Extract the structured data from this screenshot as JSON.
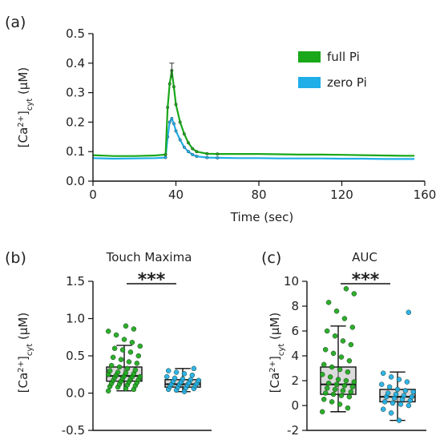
{
  "colors": {
    "full": "#1aa81a",
    "zero": "#20aee8",
    "box_full": "#bdbdbd",
    "box_zero": "#bdbdbd"
  },
  "chart_data": [
    {
      "panel": "(a)",
      "type": "line",
      "title": "",
      "xlabel": "Time (sec)",
      "ylabel_main": "[Ca",
      "ylabel_sup": "2+",
      "ylabel_close": "]",
      "ylabel_sub": "cyt",
      "ylabel_unit": " (µM)",
      "xlim": [
        0,
        160
      ],
      "ylim": [
        0,
        0.5
      ],
      "xticks": [
        "0",
        "40",
        "80",
        "120",
        "160"
      ],
      "xtick_values": [
        0,
        40,
        80,
        120,
        160
      ],
      "yticks": [
        "0.0",
        "0.1",
        "0.2",
        "0.3",
        "0.4",
        "0.5"
      ],
      "ytick_values": [
        0,
        0.1,
        0.2,
        0.3,
        0.4,
        0.5
      ],
      "legend_position": "top-right",
      "series": [
        {
          "name": "full Pi",
          "key": "full",
          "x": [
            0,
            10,
            20,
            30,
            35,
            36,
            37,
            38,
            39,
            40,
            42,
            44,
            46,
            48,
            50,
            55,
            60,
            70,
            80,
            90,
            100,
            110,
            120,
            130,
            140,
            150,
            155
          ],
          "y": [
            0.088,
            0.085,
            0.085,
            0.087,
            0.09,
            0.25,
            0.33,
            0.375,
            0.32,
            0.26,
            0.2,
            0.16,
            0.13,
            0.11,
            0.1,
            0.093,
            0.092,
            0.092,
            0.092,
            0.091,
            0.09,
            0.09,
            0.089,
            0.088,
            0.087,
            0.086,
            0.086
          ]
        },
        {
          "name": "zero Pi",
          "key": "zero",
          "x": [
            0,
            10,
            20,
            30,
            35,
            36,
            37,
            38,
            39,
            40,
            42,
            44,
            46,
            48,
            50,
            55,
            60,
            70,
            80,
            90,
            100,
            110,
            120,
            130,
            140,
            150,
            155
          ],
          "y": [
            0.078,
            0.076,
            0.077,
            0.078,
            0.08,
            0.15,
            0.2,
            0.212,
            0.195,
            0.17,
            0.14,
            0.115,
            0.1,
            0.09,
            0.084,
            0.08,
            0.079,
            0.078,
            0.078,
            0.077,
            0.077,
            0.077,
            0.076,
            0.076,
            0.075,
            0.075,
            0.075
          ]
        }
      ],
      "annotations": [
        {
          "type": "error_bar",
          "series": "full Pi",
          "x": 38,
          "y_low": 0.35,
          "y_high": 0.4
        }
      ]
    },
    {
      "panel": "(b)",
      "type": "box",
      "title": "Touch Maxima",
      "ylabel_main": "[Ca",
      "ylabel_sup": "2+",
      "ylabel_close": "]",
      "ylabel_sub": "cyt",
      "ylabel_unit": " (µM)",
      "ylim": [
        -0.5,
        1.5
      ],
      "yticks": [
        "-0.5",
        "0.0",
        "0.5",
        "1.0",
        "1.5"
      ],
      "ytick_values": [
        -0.5,
        0,
        0.5,
        1.0,
        1.5
      ],
      "significance": "***",
      "groups": [
        {
          "key": "full",
          "whisker_low": 0.03,
          "q1": 0.16,
          "median": 0.23,
          "q3": 0.35,
          "whisker_high": 0.64,
          "points": [
            0.03,
            0.05,
            0.06,
            0.08,
            0.09,
            0.1,
            0.11,
            0.12,
            0.13,
            0.14,
            0.15,
            0.16,
            0.17,
            0.18,
            0.19,
            0.2,
            0.21,
            0.22,
            0.22,
            0.23,
            0.24,
            0.25,
            0.26,
            0.27,
            0.28,
            0.3,
            0.31,
            0.33,
            0.35,
            0.37,
            0.4,
            0.42,
            0.45,
            0.48,
            0.5,
            0.55,
            0.58,
            0.6,
            0.63,
            0.68,
            0.72,
            0.78,
            0.83,
            0.86,
            0.9
          ]
        },
        {
          "key": "zero",
          "whisker_low": 0.02,
          "q1": 0.08,
          "median": 0.12,
          "q3": 0.18,
          "whisker_high": 0.33,
          "points": [
            0.02,
            0.04,
            0.05,
            0.06,
            0.07,
            0.08,
            0.09,
            0.1,
            0.11,
            0.12,
            0.12,
            0.13,
            0.14,
            0.15,
            0.16,
            0.17,
            0.18,
            0.19,
            0.2,
            0.22,
            0.24,
            0.26,
            0.28,
            0.3,
            0.33
          ]
        }
      ]
    },
    {
      "panel": "(c)",
      "type": "box",
      "title": "AUC",
      "ylabel_main": "[Ca",
      "ylabel_sup": "2+",
      "ylabel_close": "]",
      "ylabel_sub": "cyt",
      "ylabel_unit": " (µM)",
      "ylim": [
        -2,
        10
      ],
      "yticks": [
        "-2",
        "0",
        "2",
        "4",
        "6",
        "8",
        "10"
      ],
      "ytick_values": [
        -2,
        0,
        2,
        4,
        6,
        8,
        10
      ],
      "significance": "***",
      "groups": [
        {
          "key": "full",
          "whisker_low": -0.5,
          "q1": 0.9,
          "median": 1.7,
          "q3": 3.1,
          "whisker_high": 6.4,
          "points": [
            -0.5,
            -0.2,
            0.1,
            0.3,
            0.5,
            0.7,
            0.8,
            0.9,
            1.0,
            1.1,
            1.2,
            1.3,
            1.4,
            1.5,
            1.6,
            1.7,
            1.8,
            1.9,
            2.0,
            2.1,
            2.3,
            2.5,
            2.7,
            2.9,
            3.1,
            3.3,
            3.6,
            3.9,
            4.2,
            4.5,
            4.9,
            5.2,
            5.6,
            6.0,
            6.3,
            7.0,
            7.6,
            8.3,
            9.0,
            9.4
          ]
        },
        {
          "key": "zero",
          "whisker_low": -1.2,
          "q1": 0.3,
          "median": 0.7,
          "q3": 1.3,
          "whisker_high": 2.7,
          "points": [
            -1.2,
            -0.6,
            -0.3,
            0.0,
            0.1,
            0.2,
            0.3,
            0.4,
            0.5,
            0.6,
            0.7,
            0.7,
            0.8,
            0.9,
            1.0,
            1.1,
            1.2,
            1.3,
            1.5,
            1.7,
            1.9,
            2.1,
            2.3,
            2.6,
            7.5
          ]
        }
      ]
    }
  ]
}
